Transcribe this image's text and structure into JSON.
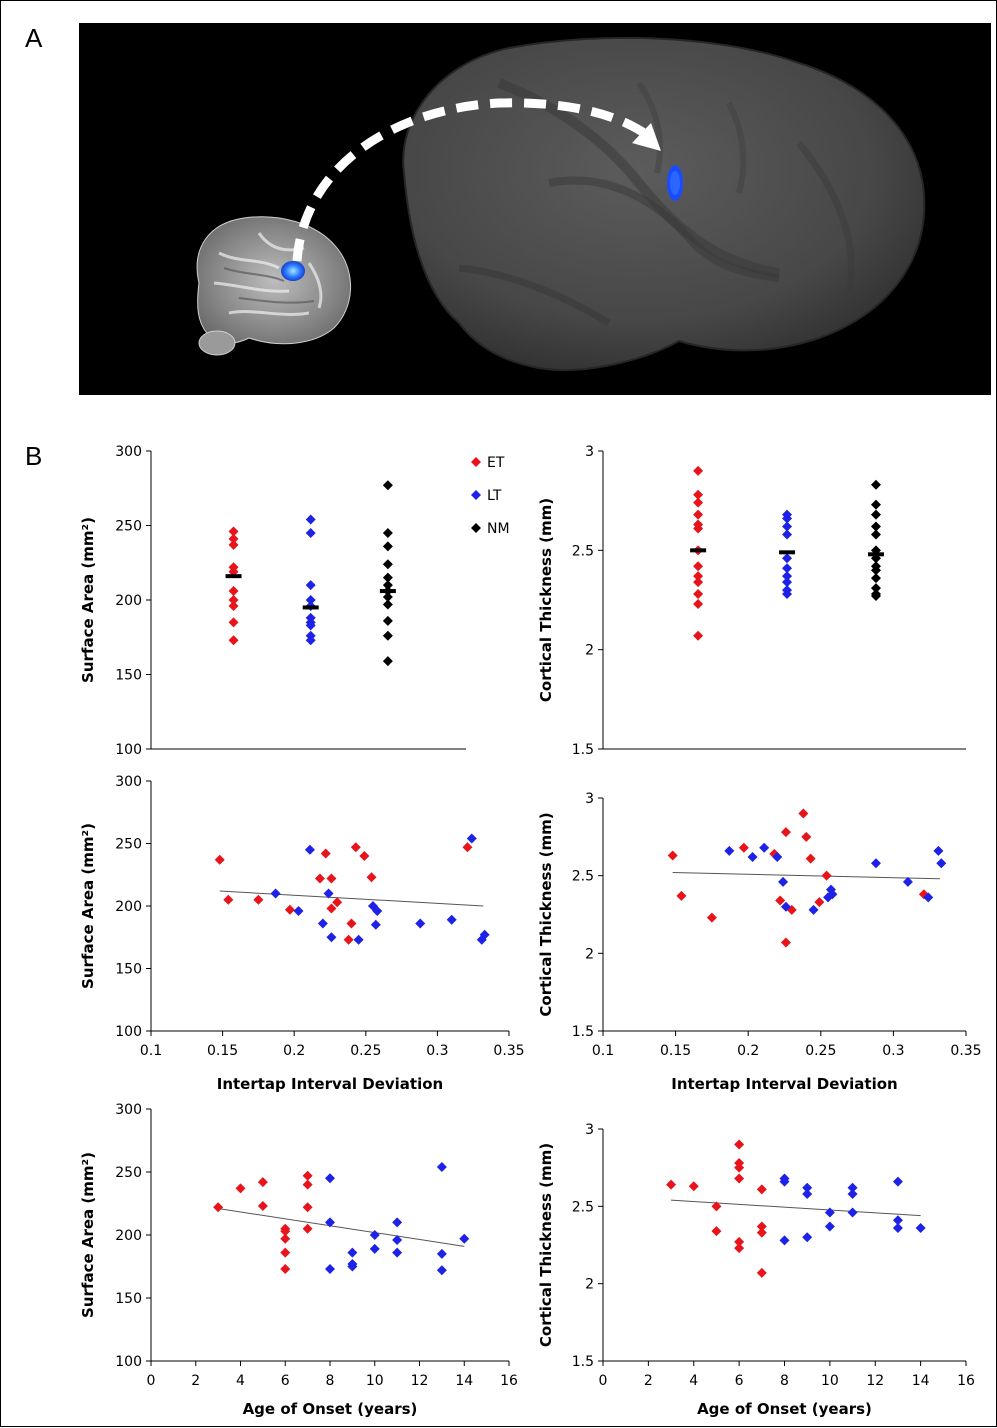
{
  "figure": {
    "panel_a_label": "A",
    "panel_b_label": "B",
    "brain_colors": {
      "background": "#000000",
      "cortex": "#4a4a4a",
      "activation": "#1a4cff",
      "arrow": "#ffffff"
    }
  },
  "colors": {
    "ET": "#e8141c",
    "LT": "#1e22e6",
    "NM": "#000000"
  },
  "legend": [
    {
      "key": "ET",
      "label": "ET"
    },
    {
      "key": "LT",
      "label": "LT"
    },
    {
      "key": "NM",
      "label": "NM"
    }
  ],
  "chart_data": [
    {
      "id": "sa_group",
      "type": "scatter",
      "ylabel": "Surface Area (mm²)",
      "xlabel": "",
      "ylim": [
        100,
        300
      ],
      "yticks": [
        100,
        150,
        200,
        250,
        300
      ],
      "categories": [
        "ET",
        "LT",
        "NM"
      ],
      "groups": [
        {
          "group": "ET",
          "mean": 216,
          "values": [
            246,
            241,
            237,
            222,
            219,
            206,
            200,
            196,
            185,
            173
          ]
        },
        {
          "group": "LT",
          "mean": 195,
          "values": [
            254,
            245,
            210,
            200,
            196,
            188,
            185,
            183,
            176,
            173
          ]
        },
        {
          "group": "NM",
          "mean": 206,
          "values": [
            277,
            245,
            236,
            224,
            215,
            210,
            206,
            202,
            197,
            186,
            176,
            159
          ]
        }
      ]
    },
    {
      "id": "ct_group",
      "type": "scatter",
      "ylabel": "Cortical Thickness (mm)",
      "xlabel": "",
      "ylim": [
        1.5,
        3
      ],
      "yticks": [
        1.5,
        2,
        2.5,
        3
      ],
      "categories": [
        "ET",
        "LT",
        "NM"
      ],
      "groups": [
        {
          "group": "ET",
          "mean": 2.5,
          "values": [
            2.9,
            2.78,
            2.74,
            2.68,
            2.63,
            2.61,
            2.5,
            2.42,
            2.37,
            2.34,
            2.28,
            2.23,
            2.07
          ]
        },
        {
          "group": "LT",
          "mean": 2.49,
          "values": [
            2.68,
            2.66,
            2.62,
            2.58,
            2.46,
            2.41,
            2.37,
            2.34,
            2.3,
            2.28
          ]
        },
        {
          "group": "NM",
          "mean": 2.48,
          "values": [
            2.83,
            2.73,
            2.68,
            2.62,
            2.58,
            2.5,
            2.46,
            2.42,
            2.4,
            2.36,
            2.31,
            2.28,
            2.27
          ]
        }
      ]
    },
    {
      "id": "sa_iti",
      "type": "scatter",
      "ylabel": "Surface Area (mm²)",
      "xlabel": "Intertap Interval Deviation",
      "xlim": [
        0.1,
        0.35
      ],
      "xticks": [
        0.1,
        0.15,
        0.2,
        0.25,
        0.3,
        0.35
      ],
      "ylim": [
        100,
        300
      ],
      "yticks": [
        100,
        150,
        200,
        250,
        300
      ],
      "trend": {
        "x": [
          0.148,
          0.332
        ],
        "y": [
          212,
          200
        ]
      },
      "points": [
        {
          "g": "ET",
          "x": 0.148,
          "y": 237
        },
        {
          "g": "ET",
          "x": 0.154,
          "y": 205
        },
        {
          "g": "ET",
          "x": 0.175,
          "y": 205
        },
        {
          "g": "ET",
          "x": 0.197,
          "y": 197
        },
        {
          "g": "ET",
          "x": 0.218,
          "y": 222
        },
        {
          "g": "ET",
          "x": 0.222,
          "y": 242
        },
        {
          "g": "ET",
          "x": 0.226,
          "y": 222
        },
        {
          "g": "ET",
          "x": 0.226,
          "y": 198
        },
        {
          "g": "ET",
          "x": 0.23,
          "y": 203
        },
        {
          "g": "ET",
          "x": 0.238,
          "y": 173
        },
        {
          "g": "ET",
          "x": 0.24,
          "y": 186
        },
        {
          "g": "ET",
          "x": 0.243,
          "y": 247
        },
        {
          "g": "ET",
          "x": 0.249,
          "y": 240
        },
        {
          "g": "ET",
          "x": 0.254,
          "y": 223
        },
        {
          "g": "ET",
          "x": 0.321,
          "y": 247
        },
        {
          "g": "LT",
          "x": 0.187,
          "y": 210
        },
        {
          "g": "LT",
          "x": 0.203,
          "y": 196
        },
        {
          "g": "LT",
          "x": 0.211,
          "y": 245
        },
        {
          "g": "LT",
          "x": 0.22,
          "y": 186
        },
        {
          "g": "LT",
          "x": 0.224,
          "y": 210
        },
        {
          "g": "LT",
          "x": 0.226,
          "y": 175
        },
        {
          "g": "LT",
          "x": 0.245,
          "y": 173
        },
        {
          "g": "LT",
          "x": 0.255,
          "y": 200
        },
        {
          "g": "LT",
          "x": 0.257,
          "y": 185
        },
        {
          "g": "LT",
          "x": 0.258,
          "y": 196
        },
        {
          "g": "LT",
          "x": 0.288,
          "y": 186
        },
        {
          "g": "LT",
          "x": 0.31,
          "y": 189
        },
        {
          "g": "LT",
          "x": 0.324,
          "y": 254
        },
        {
          "g": "LT",
          "x": 0.331,
          "y": 173
        },
        {
          "g": "LT",
          "x": 0.333,
          "y": 177
        }
      ]
    },
    {
      "id": "ct_iti",
      "type": "scatter",
      "ylabel": "Cortical Thickness (mm)",
      "xlabel": "Intertap Interval Deviation",
      "xlim": [
        0.1,
        0.35
      ],
      "xticks": [
        0.1,
        0.15,
        0.2,
        0.25,
        0.3,
        0.35
      ],
      "ylim": [
        1.5,
        3
      ],
      "yticks": [
        1.5,
        2,
        2.5,
        3
      ],
      "trend": {
        "x": [
          0.148,
          0.332
        ],
        "y": [
          2.52,
          2.48
        ]
      },
      "points": [
        {
          "g": "ET",
          "x": 0.148,
          "y": 2.63
        },
        {
          "g": "ET",
          "x": 0.154,
          "y": 2.37
        },
        {
          "g": "ET",
          "x": 0.175,
          "y": 2.23
        },
        {
          "g": "ET",
          "x": 0.197,
          "y": 2.68
        },
        {
          "g": "ET",
          "x": 0.218,
          "y": 2.64
        },
        {
          "g": "ET",
          "x": 0.222,
          "y": 2.34
        },
        {
          "g": "ET",
          "x": 0.226,
          "y": 2.78
        },
        {
          "g": "ET",
          "x": 0.226,
          "y": 2.07
        },
        {
          "g": "ET",
          "x": 0.23,
          "y": 2.28
        },
        {
          "g": "ET",
          "x": 0.238,
          "y": 2.9
        },
        {
          "g": "ET",
          "x": 0.24,
          "y": 2.75
        },
        {
          "g": "ET",
          "x": 0.243,
          "y": 2.61
        },
        {
          "g": "ET",
          "x": 0.249,
          "y": 2.33
        },
        {
          "g": "ET",
          "x": 0.254,
          "y": 2.5
        },
        {
          "g": "ET",
          "x": 0.321,
          "y": 2.38
        },
        {
          "g": "LT",
          "x": 0.187,
          "y": 2.66
        },
        {
          "g": "LT",
          "x": 0.203,
          "y": 2.62
        },
        {
          "g": "LT",
          "x": 0.211,
          "y": 2.68
        },
        {
          "g": "LT",
          "x": 0.22,
          "y": 2.62
        },
        {
          "g": "LT",
          "x": 0.224,
          "y": 2.46
        },
        {
          "g": "LT",
          "x": 0.226,
          "y": 2.3
        },
        {
          "g": "LT",
          "x": 0.245,
          "y": 2.28
        },
        {
          "g": "LT",
          "x": 0.255,
          "y": 2.36
        },
        {
          "g": "LT",
          "x": 0.257,
          "y": 2.41
        },
        {
          "g": "LT",
          "x": 0.258,
          "y": 2.38
        },
        {
          "g": "LT",
          "x": 0.288,
          "y": 2.58
        },
        {
          "g": "LT",
          "x": 0.31,
          "y": 2.46
        },
        {
          "g": "LT",
          "x": 0.324,
          "y": 2.36
        },
        {
          "g": "LT",
          "x": 0.331,
          "y": 2.66
        },
        {
          "g": "LT",
          "x": 0.333,
          "y": 2.58
        }
      ]
    },
    {
      "id": "sa_age",
      "type": "scatter",
      "ylabel": "Surface Area (mm²)",
      "xlabel": "Age of Onset (years)",
      "xlim": [
        0,
        16
      ],
      "xticks": [
        0,
        2,
        4,
        6,
        8,
        10,
        12,
        14,
        16
      ],
      "ylim": [
        100,
        300
      ],
      "yticks": [
        100,
        150,
        200,
        250,
        300
      ],
      "trend": {
        "x": [
          3,
          14
        ],
        "y": [
          221,
          191
        ]
      },
      "points": [
        {
          "g": "ET",
          "x": 3,
          "y": 222
        },
        {
          "g": "ET",
          "x": 4,
          "y": 237
        },
        {
          "g": "ET",
          "x": 5,
          "y": 242
        },
        {
          "g": "ET",
          "x": 5,
          "y": 223
        },
        {
          "g": "ET",
          "x": 6,
          "y": 205
        },
        {
          "g": "ET",
          "x": 6,
          "y": 203
        },
        {
          "g": "ET",
          "x": 6,
          "y": 197
        },
        {
          "g": "ET",
          "x": 6,
          "y": 186
        },
        {
          "g": "ET",
          "x": 6,
          "y": 173
        },
        {
          "g": "ET",
          "x": 7,
          "y": 247
        },
        {
          "g": "ET",
          "x": 7,
          "y": 240
        },
        {
          "g": "ET",
          "x": 7,
          "y": 222
        },
        {
          "g": "ET",
          "x": 7,
          "y": 205
        },
        {
          "g": "LT",
          "x": 8,
          "y": 245
        },
        {
          "g": "LT",
          "x": 8,
          "y": 210
        },
        {
          "g": "LT",
          "x": 8,
          "y": 173
        },
        {
          "g": "LT",
          "x": 9,
          "y": 186
        },
        {
          "g": "LT",
          "x": 9,
          "y": 177
        },
        {
          "g": "LT",
          "x": 9,
          "y": 175
        },
        {
          "g": "LT",
          "x": 10,
          "y": 200
        },
        {
          "g": "LT",
          "x": 10,
          "y": 189
        },
        {
          "g": "LT",
          "x": 11,
          "y": 210
        },
        {
          "g": "LT",
          "x": 11,
          "y": 196
        },
        {
          "g": "LT",
          "x": 11,
          "y": 186
        },
        {
          "g": "LT",
          "x": 13,
          "y": 254
        },
        {
          "g": "LT",
          "x": 13,
          "y": 185
        },
        {
          "g": "LT",
          "x": 13,
          "y": 172
        },
        {
          "g": "LT",
          "x": 14,
          "y": 197
        }
      ]
    },
    {
      "id": "ct_age",
      "type": "scatter",
      "ylabel": "Cortical Thickness (mm)",
      "xlabel": "Age of Onset (years)",
      "xlim": [
        0,
        16
      ],
      "xticks": [
        0,
        2,
        4,
        6,
        8,
        10,
        12,
        14,
        16
      ],
      "ylim": [
        1.5,
        3
      ],
      "yticks": [
        1.5,
        2,
        2.5,
        3
      ],
      "trend": {
        "x": [
          3,
          14
        ],
        "y": [
          2.54,
          2.44
        ]
      },
      "points": [
        {
          "g": "ET",
          "x": 3,
          "y": 2.64
        },
        {
          "g": "ET",
          "x": 4,
          "y": 2.63
        },
        {
          "g": "ET",
          "x": 5,
          "y": 2.5
        },
        {
          "g": "ET",
          "x": 5,
          "y": 2.34
        },
        {
          "g": "ET",
          "x": 6,
          "y": 2.9
        },
        {
          "g": "ET",
          "x": 6,
          "y": 2.78
        },
        {
          "g": "ET",
          "x": 6,
          "y": 2.75
        },
        {
          "g": "ET",
          "x": 6,
          "y": 2.68
        },
        {
          "g": "ET",
          "x": 6,
          "y": 2.27
        },
        {
          "g": "ET",
          "x": 6,
          "y": 2.23
        },
        {
          "g": "ET",
          "x": 7,
          "y": 2.61
        },
        {
          "g": "ET",
          "x": 7,
          "y": 2.37
        },
        {
          "g": "ET",
          "x": 7,
          "y": 2.33
        },
        {
          "g": "ET",
          "x": 7,
          "y": 2.07
        },
        {
          "g": "LT",
          "x": 8,
          "y": 2.68
        },
        {
          "g": "LT",
          "x": 8,
          "y": 2.66
        },
        {
          "g": "LT",
          "x": 8,
          "y": 2.28
        },
        {
          "g": "LT",
          "x": 9,
          "y": 2.62
        },
        {
          "g": "LT",
          "x": 9,
          "y": 2.58
        },
        {
          "g": "LT",
          "x": 9,
          "y": 2.3
        },
        {
          "g": "LT",
          "x": 10,
          "y": 2.46
        },
        {
          "g": "LT",
          "x": 10,
          "y": 2.37
        },
        {
          "g": "LT",
          "x": 11,
          "y": 2.62
        },
        {
          "g": "LT",
          "x": 11,
          "y": 2.58
        },
        {
          "g": "LT",
          "x": 11,
          "y": 2.46
        },
        {
          "g": "LT",
          "x": 13,
          "y": 2.66
        },
        {
          "g": "LT",
          "x": 13,
          "y": 2.41
        },
        {
          "g": "LT",
          "x": 13,
          "y": 2.36
        },
        {
          "g": "LT",
          "x": 14,
          "y": 2.36
        }
      ]
    }
  ]
}
